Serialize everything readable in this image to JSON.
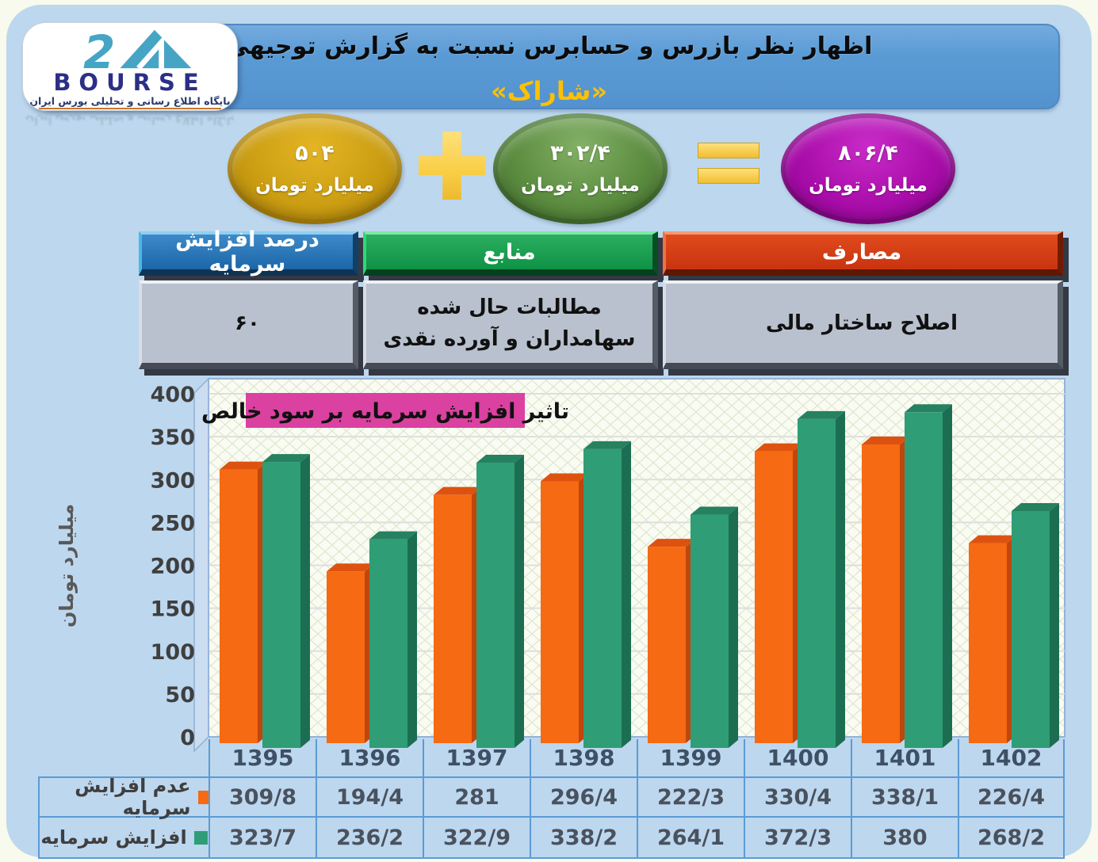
{
  "page": {
    "panel_bg": "#BDD7EE",
    "outer_bg": "#F7FAEC"
  },
  "header": {
    "title_line1": "اظهار نظر بازرس و حسابرس نسبت به گزارش توجیهی",
    "title_line2": "«شاراک»",
    "accent_color": "#FFC000",
    "banner_color": "#5B9BD5"
  },
  "logo": {
    "number": "24",
    "brand": "BOURSE",
    "subtitle": "پایگاه اطلاع رسانی و تحلیلی بورس ایران"
  },
  "equation": {
    "left": {
      "value": "۵۰۴",
      "unit": "میلیارد تومان",
      "color": "#CB9D12"
    },
    "plus": "+",
    "middle": {
      "value": "۳۰۲/۴",
      "unit": "میلیارد تومان",
      "color": "#5B8C3F"
    },
    "equals": "=",
    "result": {
      "value": "۸۰۶/۴",
      "unit": "میلیارد تومان",
      "color": "#A90DA9"
    },
    "operator_color": "#F9CE45"
  },
  "info_table": {
    "headers": [
      {
        "label": "درصد افزایش سرمایه",
        "color": "#1F6CB0"
      },
      {
        "label": "منابع",
        "color": "#12A150"
      },
      {
        "label": "مصارف",
        "color": "#D23B12"
      }
    ],
    "values": [
      "۶۰",
      "مطالبات حال شده سهامداران و آورده نقدی",
      "اصلاح ساختار مالی"
    ]
  },
  "chart_data": {
    "type": "bar",
    "title": "تاثیر افزایش سرمایه بر سود خالص",
    "title_bg": "#DB41A1",
    "ylabel": "میلیارد تومان",
    "ylim": [
      0,
      400
    ],
    "ytick_step": 50,
    "yticks": [
      "400",
      "350",
      "300",
      "250",
      "200",
      "150",
      "100",
      "50",
      "0"
    ],
    "grid": true,
    "legend_position": "table-left",
    "categories": [
      "1395",
      "1396",
      "1397",
      "1398",
      "1399",
      "1400",
      "1401",
      "1402"
    ],
    "series": [
      {
        "name": "عدم افزایش سرمایه",
        "color": "#F56A12",
        "color_top": "#DE5210",
        "color_side": "#BF470E",
        "values": [
          309.8,
          194.4,
          281,
          296.4,
          222.3,
          330.4,
          338.1,
          226.4
        ],
        "labels": [
          "309/8",
          "194/4",
          "281",
          "296/4",
          "222/3",
          "330/4",
          "338/1",
          "226/4"
        ]
      },
      {
        "name": "افزایش سرمایه",
        "color": "#2F9D76",
        "color_top": "#25815F",
        "color_side": "#1C6E52",
        "values": [
          323.7,
          236.2,
          322.9,
          338.2,
          264.1,
          372.3,
          380,
          268.2
        ],
        "labels": [
          "323/7",
          "236/2",
          "322/9",
          "338/2",
          "264/1",
          "372/3",
          "380",
          "268/2"
        ]
      }
    ]
  }
}
